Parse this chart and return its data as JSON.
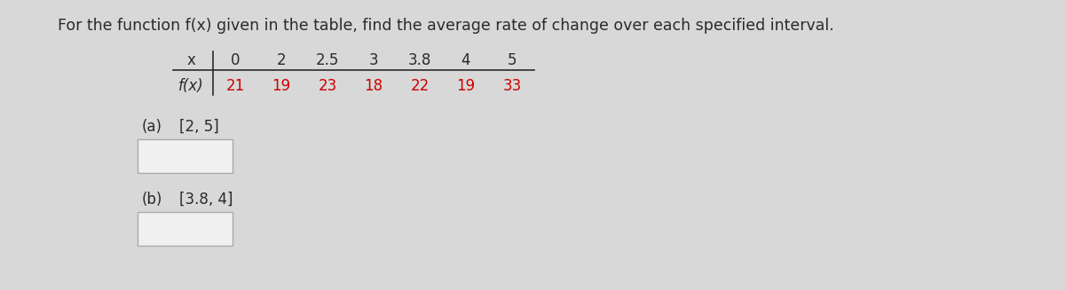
{
  "title": "For the function f(x) given in the table, find the average rate of change over each specified interval.",
  "title_fontsize": 12.5,
  "title_color": "#2a2a2a",
  "x_values": [
    "0",
    "2",
    "2.5",
    "3",
    "3.8",
    "4",
    "5"
  ],
  "fx_values": [
    "21",
    "19",
    "23",
    "18",
    "22",
    "19",
    "33"
  ],
  "x_label": "x",
  "fx_label": "f(x)",
  "data_color": "#cc0000",
  "label_color": "#2a2a2a",
  "part_a_label": "(a)",
  "part_a_interval": "[2, 5]",
  "part_b_label": "(b)",
  "part_b_interval": "[3.8, 4]",
  "box_fill": "#f0f0f0",
  "box_edge": "#aaaaaa",
  "fig_bg": "#d8d8d8",
  "table_font": 12,
  "parts_font": 12
}
